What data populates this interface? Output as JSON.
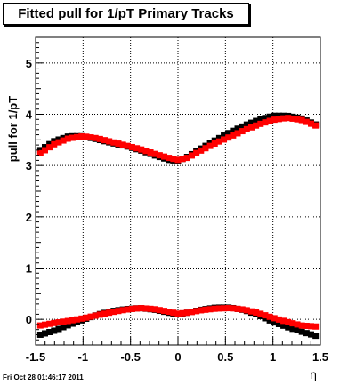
{
  "title": "Fitted pull for 1/pT  Primary Tracks",
  "footer": {
    "timestamp": "Fri Oct 28 01:46:17 2011"
  },
  "colors": {
    "red": "#ff0000",
    "black": "#000000",
    "axis": "#000000"
  },
  "chart_data": {
    "type": "scatter",
    "title": "Fitted pull for 1/pT  Primary Tracks",
    "xlabel": "η",
    "ylabel": "pull for 1/pT",
    "xlim": [
      -1.5,
      1.5
    ],
    "ylim": [
      -0.5,
      5.5
    ],
    "xticks": [
      -1.5,
      -1,
      -0.5,
      0,
      0.5,
      1,
      1.5
    ],
    "xtick_labels": [
      "-1.5",
      "-1",
      "-0.5",
      "0",
      "0.5",
      "1",
      "1.5"
    ],
    "yticks": [
      0,
      1,
      2,
      3,
      4,
      5
    ],
    "ytick_labels": [
      "0",
      "1",
      "2",
      "3",
      "4",
      "5"
    ],
    "grid": true,
    "series": [
      {
        "color": "#000000",
        "marker": "square",
        "x": [
          -1.45,
          -1.3,
          -1.15,
          -1.0,
          -0.85,
          -0.7,
          -0.55,
          -0.4,
          -0.25,
          -0.1,
          0.0,
          0.1,
          0.25,
          0.4,
          0.55,
          0.7,
          0.85,
          1.0,
          1.15,
          1.3,
          1.45
        ],
        "y": [
          3.3,
          3.48,
          3.57,
          3.57,
          3.51,
          3.44,
          3.38,
          3.3,
          3.2,
          3.11,
          3.09,
          3.17,
          3.34,
          3.5,
          3.65,
          3.78,
          3.89,
          3.97,
          3.97,
          3.92,
          3.8
        ]
      },
      {
        "color": "#ff0000",
        "marker": "square",
        "x": [
          -1.45,
          -1.3,
          -1.15,
          -1.0,
          -0.85,
          -0.7,
          -0.55,
          -0.4,
          -0.25,
          -0.1,
          0.0,
          0.1,
          0.25,
          0.4,
          0.55,
          0.7,
          0.85,
          1.0,
          1.15,
          1.3,
          1.45
        ],
        "y": [
          3.24,
          3.42,
          3.53,
          3.57,
          3.53,
          3.46,
          3.39,
          3.32,
          3.23,
          3.15,
          3.11,
          3.15,
          3.3,
          3.44,
          3.56,
          3.69,
          3.8,
          3.89,
          3.93,
          3.89,
          3.78
        ]
      },
      {
        "color": "#000000",
        "marker": "square",
        "x": [
          -1.45,
          -1.3,
          -1.15,
          -1.0,
          -0.85,
          -0.7,
          -0.55,
          -0.4,
          -0.25,
          -0.1,
          0.0,
          0.1,
          0.25,
          0.4,
          0.55,
          0.7,
          0.85,
          1.0,
          1.15,
          1.3,
          1.45
        ],
        "y": [
          -0.3,
          -0.22,
          -0.11,
          -0.01,
          0.09,
          0.16,
          0.2,
          0.22,
          0.19,
          0.13,
          0.1,
          0.13,
          0.19,
          0.23,
          0.23,
          0.18,
          0.08,
          -0.05,
          -0.15,
          -0.24,
          -0.32
        ]
      },
      {
        "color": "#ff0000",
        "marker": "square",
        "x": [
          -1.45,
          -1.3,
          -1.15,
          -1.0,
          -0.85,
          -0.7,
          -0.55,
          -0.4,
          -0.25,
          -0.1,
          0.0,
          0.1,
          0.25,
          0.4,
          0.55,
          0.7,
          0.85,
          1.0,
          1.15,
          1.3,
          1.45
        ],
        "y": [
          -0.12,
          -0.07,
          -0.03,
          0.02,
          0.08,
          0.14,
          0.19,
          0.22,
          0.2,
          0.15,
          0.11,
          0.13,
          0.18,
          0.21,
          0.22,
          0.19,
          0.12,
          0.03,
          -0.05,
          -0.12,
          -0.14
        ]
      }
    ]
  }
}
